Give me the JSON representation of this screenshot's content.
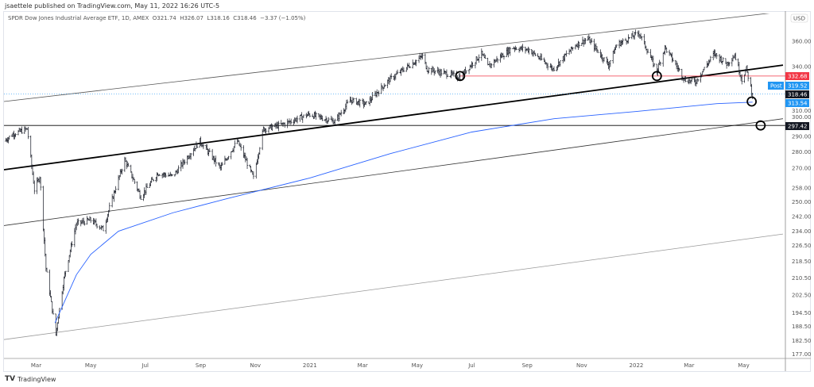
{
  "header": {
    "published": "jsaettele published on TradingView.com, May 11, 2022 16:26 UTC-5"
  },
  "legend": {
    "symbol": "SPDR Dow Jones Industrial Average ETF, 1D, AMEX",
    "open": "O321.74",
    "high": "H326.07",
    "low": "L318.16",
    "close": "C318.46",
    "change": "−3.37 (−1.05%)"
  },
  "footer": {
    "logo": "TradingView"
  },
  "chart_data": {
    "type": "ohlc",
    "scale": "log",
    "currency": "USD",
    "ylim": [
      174,
      375
    ],
    "xlim": [
      "2020-01-25",
      "2022-06-14"
    ],
    "y_ticks": [
      "360.00",
      "340.00",
      "310.00",
      "300.00",
      "290.00",
      "280.00",
      "270.00",
      "258.00",
      "250.00",
      "242.00",
      "234.00",
      "226.50",
      "218.50",
      "210.50",
      "202.50",
      "194.50",
      "188.50",
      "182.50",
      "177.00"
    ],
    "x_ticks": [
      {
        "date": "2020-03-01",
        "label": "Mar"
      },
      {
        "date": "2020-05-01",
        "label": "May"
      },
      {
        "date": "2020-07-01",
        "label": "Jul"
      },
      {
        "date": "2020-09-01",
        "label": "Sep"
      },
      {
        "date": "2020-11-01",
        "label": "Nov"
      },
      {
        "date": "2021-01-01",
        "label": "2021"
      },
      {
        "date": "2021-03-01",
        "label": "Mar"
      },
      {
        "date": "2021-05-01",
        "label": "May"
      },
      {
        "date": "2021-07-01",
        "label": "Jul"
      },
      {
        "date": "2021-09-01",
        "label": "Sep"
      },
      {
        "date": "2021-11-01",
        "label": "Nov"
      },
      {
        "date": "2022-01-01",
        "label": "2022"
      },
      {
        "date": "2022-03-01",
        "label": "Mar"
      },
      {
        "date": "2022-05-01",
        "label": "May"
      }
    ],
    "close_series": [
      [
        "2020-01-25",
        287
      ],
      [
        "2020-02-05",
        292
      ],
      [
        "2020-02-20",
        295
      ],
      [
        "2020-02-28",
        257
      ],
      [
        "2020-03-05",
        265
      ],
      [
        "2020-03-12",
        215
      ],
      [
        "2020-03-23",
        185
      ],
      [
        "2020-04-01",
        210
      ],
      [
        "2020-04-15",
        238
      ],
      [
        "2020-05-01",
        240
      ],
      [
        "2020-05-15",
        235
      ],
      [
        "2020-06-08",
        275
      ],
      [
        "2020-06-26",
        253
      ],
      [
        "2020-07-15",
        267
      ],
      [
        "2020-08-01",
        265
      ],
      [
        "2020-08-31",
        287
      ],
      [
        "2020-09-23",
        270
      ],
      [
        "2020-10-12",
        287
      ],
      [
        "2020-10-30",
        264
      ],
      [
        "2020-11-10",
        295
      ],
      [
        "2020-12-01",
        298
      ],
      [
        "2020-12-31",
        305
      ],
      [
        "2021-01-29",
        300
      ],
      [
        "2021-02-15",
        315
      ],
      [
        "2021-03-05",
        312
      ],
      [
        "2021-03-31",
        330
      ],
      [
        "2021-05-07",
        348
      ],
      [
        "2021-05-12",
        338
      ],
      [
        "2021-06-18",
        332
      ],
      [
        "2021-07-12",
        350
      ],
      [
        "2021-07-19",
        340
      ],
      [
        "2021-08-16",
        355
      ],
      [
        "2021-09-03",
        353
      ],
      [
        "2021-09-30",
        338
      ],
      [
        "2021-10-25",
        357
      ],
      [
        "2021-11-08",
        362
      ],
      [
        "2021-12-01",
        341
      ],
      [
        "2021-12-10",
        357
      ],
      [
        "2022-01-04",
        367
      ],
      [
        "2022-01-24",
        336
      ],
      [
        "2022-02-02",
        355
      ],
      [
        "2022-02-24",
        330
      ],
      [
        "2022-03-08",
        328
      ],
      [
        "2022-03-29",
        350
      ],
      [
        "2022-04-12",
        342
      ],
      [
        "2022-04-21",
        349
      ],
      [
        "2022-04-29",
        330
      ],
      [
        "2022-05-04",
        338
      ],
      [
        "2022-05-11",
        318.46
      ]
    ],
    "moving_average": [
      [
        "2020-03-22",
        190
      ],
      [
        "2020-04-15",
        212
      ],
      [
        "2020-05-01",
        222
      ],
      [
        "2020-06-01",
        234
      ],
      [
        "2020-08-01",
        244
      ],
      [
        "2020-10-01",
        252
      ],
      [
        "2021-01-01",
        264
      ],
      [
        "2021-04-01",
        279
      ],
      [
        "2021-07-01",
        293
      ],
      [
        "2021-10-01",
        302
      ],
      [
        "2022-01-01",
        307
      ],
      [
        "2022-04-01",
        312.5
      ],
      [
        "2022-05-11",
        313.54
      ]
    ],
    "trendlines": [
      {
        "from": [
          "2020-01-25",
          314
        ],
        "to": [
          "2022-06-14",
          385
        ],
        "color": "#555555",
        "width": "thin"
      },
      {
        "from": [
          "2020-01-25",
          269
        ],
        "to": [
          "2022-06-14",
          341
        ],
        "color": "#000000",
        "width": "thick"
      },
      {
        "from": [
          "2020-01-25",
          237
        ],
        "to": [
          "2022-06-14",
          302
        ],
        "color": "#333333",
        "width": "thin"
      },
      {
        "from": [
          "2020-01-25",
          183
        ],
        "to": [
          "2022-06-14",
          232.5
        ],
        "color": "#999999",
        "width": "thin"
      }
    ],
    "horizontal_lines": [
      {
        "price": 332.68,
        "from": "2021-06-18",
        "color": "#f23645",
        "label": "332.68"
      },
      {
        "price": 297.42,
        "from": "2020-01-25",
        "color": "#000000",
        "label": "297.42"
      }
    ],
    "markers": [
      [
        "2021-06-18",
        332.68
      ],
      [
        "2022-01-24",
        332.68
      ],
      [
        "2022-05-10",
        314
      ],
      [
        "2022-05-20",
        297.42
      ]
    ],
    "price_labels": [
      {
        "price": 332.68,
        "text": "332.68",
        "bg": "#f23645",
        "fg": "#ffffff"
      },
      {
        "price": 319.52,
        "text": "319.52",
        "bg": "#2196f3",
        "fg": "#ffffff",
        "tag": "Post"
      },
      {
        "price": 318.46,
        "text": "318.46",
        "bg": "#131722",
        "fg": "#ffffff"
      },
      {
        "price": 313.54,
        "text": "313.54",
        "bg": "#2196f3",
        "fg": "#ffffff"
      },
      {
        "price": 297.42,
        "text": "297.42",
        "bg": "#131722",
        "fg": "#ffffff"
      }
    ],
    "colors": {
      "bars": "#131722",
      "ma": "#2962ff",
      "post": "#2196f3"
    }
  }
}
